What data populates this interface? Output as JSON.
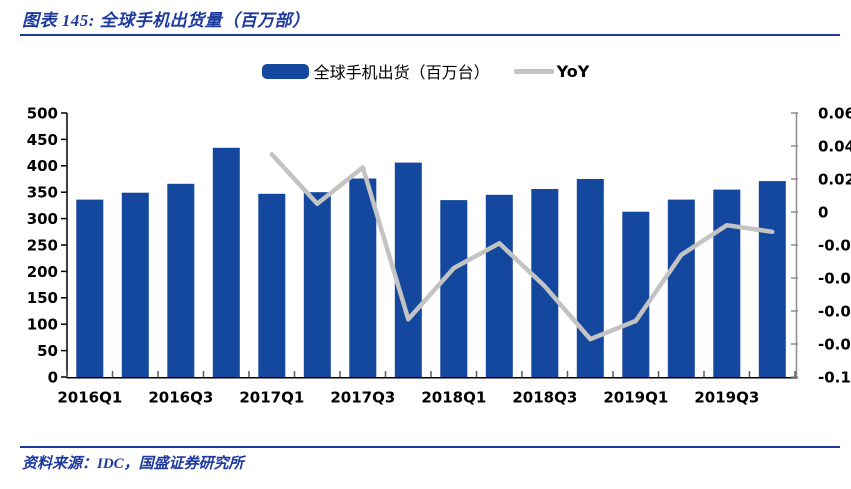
{
  "title": "图表 145: 全球手机出货量（百万部）",
  "source": "资料来源：IDC，国盛证券研究所",
  "legend": {
    "bars": "全球手机出货（百万台）",
    "line": "YoY"
  },
  "colors": {
    "bar": "#14489E",
    "line": "#C3C3C3",
    "accent_text": "#1E3A9F",
    "rule": "#1E3A9F",
    "axis_black": "#000000",
    "axis_gray": "#8C8C8C",
    "tick_gray": "#595959"
  },
  "chart_data": {
    "type": "bar",
    "title": "全球手机出货量（百万部）",
    "categories": [
      "2016Q1",
      "2016Q2",
      "2016Q3",
      "2016Q4",
      "2017Q1",
      "2017Q2",
      "2017Q3",
      "2017Q4",
      "2018Q1",
      "2018Q2",
      "2018Q3",
      "2018Q4",
      "2019Q1",
      "2019Q2",
      "2019Q3",
      "2019Q4"
    ],
    "series": [
      {
        "name": "全球手机出货（百万台）",
        "type": "bar",
        "axis": "left",
        "values": [
          336,
          349,
          366,
          434,
          347,
          350,
          376,
          406,
          335,
          345,
          356,
          375,
          313,
          336,
          355,
          371
        ]
      },
      {
        "name": "YoY",
        "type": "line",
        "axis": "right",
        "values": [
          null,
          null,
          null,
          null,
          0.035,
          0.005,
          0.027,
          -0.065,
          -0.034,
          -0.019,
          -0.045,
          -0.077,
          -0.066,
          -0.026,
          -0.008,
          -0.012
        ]
      }
    ],
    "left_axis": {
      "min": 0,
      "max": 500,
      "step": 50,
      "tick_values": [
        500,
        450,
        400,
        350,
        300,
        250,
        200,
        150,
        100,
        50,
        0
      ],
      "tick_labels": [
        "500",
        "450",
        "400",
        "350",
        "300",
        "250",
        "200",
        "150",
        "100",
        "50",
        "0"
      ]
    },
    "right_axis": {
      "min": -0.1,
      "max": 0.06,
      "step": 0.02,
      "tick_values": [
        0.06,
        0.04,
        0.02,
        0,
        -0.02,
        -0.04,
        -0.06,
        -0.08,
        -0.1
      ],
      "tick_labels": [
        "0.06",
        "0.04",
        "0.02",
        "0",
        "-0.02",
        "-0.04",
        "-0.06",
        "-0.08",
        "-0.1"
      ]
    },
    "x_tick_labels": [
      "2016Q1",
      "2016Q3",
      "2017Q1",
      "2017Q3",
      "2018Q1",
      "2018Q3",
      "2019Q1",
      "2019Q3"
    ],
    "grid": false,
    "legend_position": "top"
  }
}
